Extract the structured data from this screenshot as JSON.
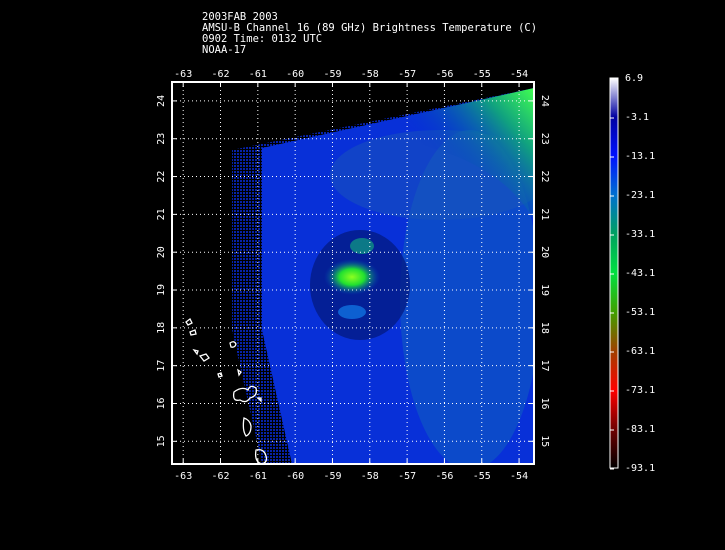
{
  "header": {
    "line1": "2003FAB 2003",
    "line2": "AMSU-B Channel 16 (89 GHz) Brightness Temperature (C)",
    "line3": "0902 Time: 0132 UTC",
    "line4": "NOAA-17"
  },
  "map": {
    "lon_range": [
      -63.3,
      -53.6
    ],
    "lat_range": [
      14.4,
      24.5
    ],
    "lon_ticks": [
      "-63",
      "-62",
      "-61",
      "-60",
      "-59",
      "-58",
      "-57",
      "-56",
      "-55",
      "-54"
    ],
    "lat_ticks": [
      "24",
      "23",
      "22",
      "21",
      "20",
      "19",
      "18",
      "17",
      "16",
      "15"
    ],
    "grid": "dotted",
    "background_color": "#000000",
    "coast_color": "#ffffff"
  },
  "colorbar": {
    "labels": [
      "6.9",
      "-3.1",
      "-13.1",
      "-23.1",
      "-33.1",
      "-43.1",
      "-53.1",
      "-63.1",
      "-73.1",
      "-83.1",
      "-93.1"
    ],
    "colors": [
      "#ffffff",
      "#0000a0",
      "#0010ff",
      "#0070d0",
      "#00a060",
      "#00e040",
      "#40a000",
      "#a04000",
      "#ff0000",
      "#700000",
      "#000000"
    ]
  }
}
